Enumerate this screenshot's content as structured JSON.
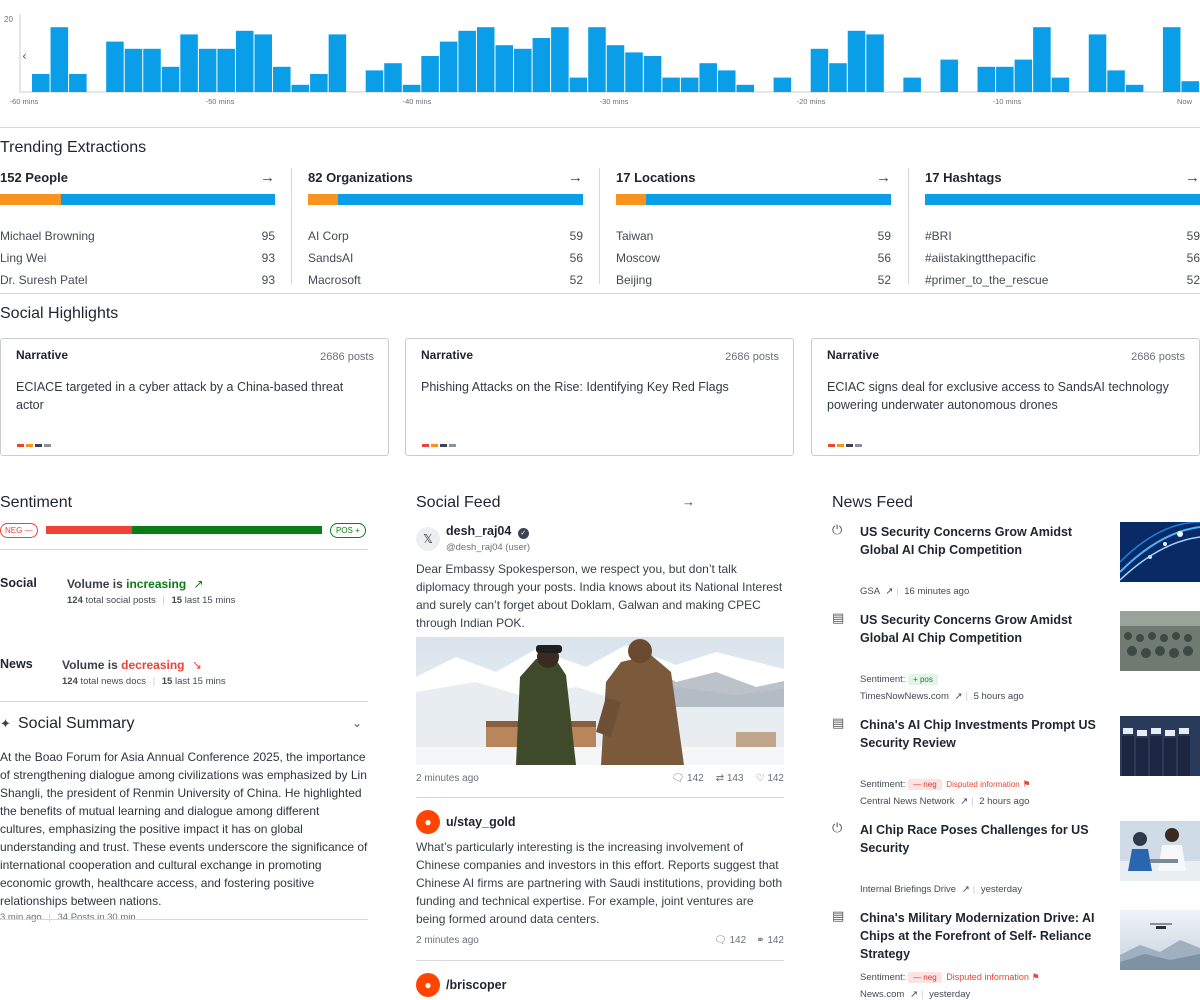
{
  "histogram": {
    "y_max_label": "20",
    "values": [
      5,
      18,
      5,
      0,
      14,
      12,
      12,
      7,
      16,
      12,
      12,
      17,
      16,
      7,
      2,
      5,
      16,
      0,
      6,
      8,
      2,
      10,
      14,
      17,
      18,
      13,
      12,
      15,
      18,
      4,
      18,
      13,
      11,
      10,
      4,
      4,
      8,
      6,
      2,
      0,
      4,
      0,
      12,
      8,
      17,
      16,
      0,
      4,
      0,
      9,
      0,
      7,
      7,
      9,
      18,
      4,
      0,
      16,
      6,
      2,
      0,
      18,
      3
    ],
    "x_tick_labels": [
      "-60 mins",
      "-50 mins",
      "-40 mins",
      "-30 mins",
      "-20 mins",
      "-10 mins",
      "Now"
    ],
    "bar_color": "#0b9ee8"
  },
  "trending": {
    "title": "Trending Extractions",
    "columns": [
      {
        "heading": "152 People",
        "orange_fraction": 0.22,
        "items": [
          {
            "name": "Michael Browning",
            "count": "95"
          },
          {
            "name": "Ling Wei",
            "count": "93"
          },
          {
            "name": "Dr. Suresh Patel",
            "count": "93"
          }
        ]
      },
      {
        "heading": "82 Organizations",
        "orange_fraction": 0.11,
        "items": [
          {
            "name": "AI Corp",
            "count": "59"
          },
          {
            "name": "SandsAI",
            "count": "56"
          },
          {
            "name": "Macrosoft",
            "count": "52"
          }
        ]
      },
      {
        "heading": "17 Locations",
        "orange_fraction": 0.11,
        "items": [
          {
            "name": "Taiwan",
            "count": "59"
          },
          {
            "name": "Moscow",
            "count": "56"
          },
          {
            "name": "Beijing",
            "count": "52"
          }
        ]
      },
      {
        "heading": "17 Hashtags",
        "orange_fraction": 0.0,
        "items": [
          {
            "name": "#BRI",
            "count": "59"
          },
          {
            "name": "#aiistakingtthepacific",
            "count": "56"
          },
          {
            "name": "#primer_to_the_rescue",
            "count": "52"
          }
        ]
      }
    ]
  },
  "social_highlights": {
    "title": "Social Highlights",
    "cards": [
      {
        "type": "Narrative",
        "posts": "2686 posts",
        "text": "ECIACE targeted in a cyber attack by a China-based threat actor"
      },
      {
        "type": "Narrative",
        "posts": "2686 posts",
        "text": "Phishing Attacks on the Rise: Identifying Key Red Flags"
      },
      {
        "type": "Narrative",
        "posts": "2686 posts",
        "text": "ECIAC signs deal for exclusive access to SandsAI technology powering underwater autonomous drones"
      }
    ],
    "dot_colors": [
      "#e84535",
      "#f7931e",
      "#3c4454",
      "#8a909c"
    ]
  },
  "sentiment": {
    "title": "Sentiment",
    "neg_label": "NEG",
    "pos_label": "POS",
    "neg_fraction": 0.31,
    "neg_color": "#ef4136",
    "pos_color": "#0a7d16",
    "social": {
      "label": "Social",
      "volume_prefix": "Volume is ",
      "trend": "increasing",
      "total_count": "124",
      "total_label": "total social posts",
      "last_count": "15",
      "last_label": "last 15 mins"
    },
    "news": {
      "label": "News",
      "volume_prefix": "Volume is ",
      "trend": "decreasing",
      "total_count": "124",
      "total_label": "total news docs",
      "last_count": "15",
      "last_label": "last 15 mins"
    }
  },
  "social_summary": {
    "title": "Social Summary",
    "text": "At the Boao Forum for Asia Annual Conference 2025, the importance of strengthening dialogue among civilizations was emphasized by Lin Shangli, the president of Renmin University of China. He highlighted the benefits of mutual learning and dialogue among different cultures, emphasizing the positive impact it has on global understanding and trust. These events underscore the significance of international cooperation and cultural exchange in promoting economic growth, healthcare access, and fostering positive relationships between nations.",
    "time": "3 min ago",
    "posts": "34 Posts in 30 min"
  },
  "social_feed": {
    "title": "Social Feed",
    "posts": [
      {
        "user": "desh_raj04",
        "handle": "@desh_raj04 (user)",
        "platform_icon": "x-icon",
        "text": "Dear Embassy Spokesperson, we respect you, but don’t talk diplomacy through your posts. India knows about its National Interest and surely can’t forget about Doklam, Galwan and making CPEC through Indian POK.",
        "time": "2 minutes ago",
        "comments": "142",
        "reposts": "143",
        "likes": "142"
      },
      {
        "user": "u/stay_gold",
        "platform_icon": "reddit-icon",
        "text": "What’s particularly interesting is the increasing involvement of Chinese companies and investors in this effort. Reports suggest that Chinese AI firms are partnering with Saudi institutions, providing both funding and technical expertise. For example, joint ventures are being formed around data centers.",
        "time": "2 minutes ago",
        "comments": "142",
        "awards": "142"
      },
      {
        "user": "/briscoper",
        "platform_icon": "reddit-icon"
      }
    ]
  },
  "news_feed": {
    "title": "News Feed",
    "items": [
      {
        "icon": "plug-icon",
        "title": "US Security Concerns Grow Amidst Global AI Chip Competition",
        "source": "GSA",
        "time": "16  minutes ago"
      },
      {
        "icon": "newspaper-icon",
        "title": "US Security Concerns Grow Amidst Global AI Chip Competition",
        "sentiment_label": "Sentiment:",
        "sentiment": "pos",
        "source": "TimesNowNews.com",
        "time": "5  hours ago"
      },
      {
        "icon": "newspaper-icon",
        "title": "China's AI Chip Investments Prompt US Security Review",
        "sentiment_label": "Sentiment:",
        "sentiment": "neg",
        "disputed": "Disputed information",
        "source": "Central News Network",
        "time": "2  hours ago"
      },
      {
        "icon": "plug-icon",
        "title": "AI Chip Race Poses Challenges for US Security",
        "source": "Internal Briefings Drive",
        "time": "yesterday"
      },
      {
        "icon": "newspaper-icon",
        "title": "China's Military Modernization Drive: AI Chips at the Forefront of Self-  Reliance Strategy",
        "sentiment_label": "Sentiment:",
        "sentiment": "neg",
        "disputed": "Disputed information",
        "source": "News.com",
        "time": "yesterday"
      }
    ]
  }
}
